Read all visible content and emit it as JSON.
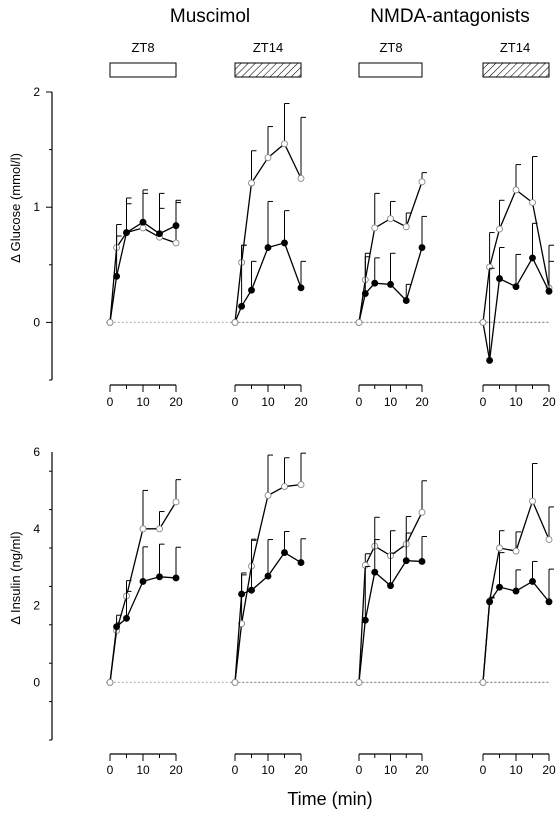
{
  "header": {
    "group_titles": [
      "Muscimol",
      "NMDA-antagonists"
    ],
    "panel_labels": [
      "ZT8",
      "ZT14",
      "ZT8",
      "ZT14"
    ],
    "bar_fill": [
      "open",
      "hatched",
      "open",
      "hatched"
    ]
  },
  "x_axis": {
    "label": "Time (min)",
    "ticks": [
      0,
      10,
      20
    ],
    "tick_labels": [
      "0",
      "10",
      "20"
    ]
  },
  "colors": {
    "line": "#000000",
    "filled_marker": "#000000",
    "open_marker": "#ffffff",
    "zero_line": "#999999"
  },
  "chart_data": [
    {
      "type": "line",
      "row": "glucose",
      "group": "Muscimol",
      "panel": "ZT8",
      "ylabel": "Δ Glucose (mmol/l)",
      "ylim": [
        -0.5,
        2
      ],
      "yticks": [
        0,
        1,
        2
      ],
      "xlim": [
        0,
        20
      ],
      "x": [
        0,
        2,
        5,
        10,
        15,
        20
      ],
      "series": [
        {
          "marker": "open",
          "values": [
            0,
            0.65,
            0.78,
            0.82,
            0.74,
            0.69
          ],
          "err": [
            0,
            0.1,
            0.25,
            0.3,
            0.25,
            0.35
          ]
        },
        {
          "marker": "filled",
          "values": [
            0,
            0.4,
            0.78,
            0.87,
            0.77,
            0.84
          ],
          "err": [
            0,
            0.45,
            0.3,
            0.28,
            0.35,
            0.22
          ]
        }
      ]
    },
    {
      "type": "line",
      "row": "glucose",
      "group": "Muscimol",
      "panel": "ZT14",
      "ylabel": "Δ Glucose (mmol/l)",
      "ylim": [
        -0.5,
        2
      ],
      "yticks": [
        0,
        1,
        2
      ],
      "xlim": [
        0,
        20
      ],
      "x": [
        0,
        2,
        5,
        10,
        15,
        20
      ],
      "series": [
        {
          "marker": "open",
          "values": [
            0,
            0.52,
            1.21,
            1.43,
            1.55,
            1.25
          ],
          "err": [
            0,
            0.15,
            0.28,
            0.27,
            0.35,
            0.53
          ]
        },
        {
          "marker": "filled",
          "values": [
            0,
            0.14,
            0.28,
            0.65,
            0.69,
            0.3
          ],
          "err": [
            0,
            0.53,
            0.25,
            0.4,
            0.28,
            0.23
          ]
        }
      ]
    },
    {
      "type": "line",
      "row": "glucose",
      "group": "NMDA-antagonists",
      "panel": "ZT8",
      "ylabel": "Δ Glucose (mmol/l)",
      "ylim": [
        -0.5,
        2
      ],
      "yticks": [
        0,
        1,
        2
      ],
      "xlim": [
        0,
        20
      ],
      "x": [
        0,
        2,
        5,
        10,
        15,
        20
      ],
      "series": [
        {
          "marker": "open",
          "values": [
            0,
            0.37,
            0.82,
            0.9,
            0.83,
            1.22
          ],
          "err": [
            0,
            0.2,
            0.3,
            0.15,
            0.12,
            0.08
          ]
        },
        {
          "marker": "filled",
          "values": [
            0,
            0.25,
            0.34,
            0.33,
            0.19,
            0.65
          ],
          "err": [
            0,
            0.35,
            0.22,
            0.27,
            0.14,
            0.27
          ]
        }
      ]
    },
    {
      "type": "line",
      "row": "glucose",
      "group": "NMDA-antagonists",
      "panel": "ZT14",
      "ylabel": "Δ Glucose (mmol/l)",
      "ylim": [
        -0.5,
        2
      ],
      "yticks": [
        0,
        1,
        2
      ],
      "xlim": [
        0,
        20
      ],
      "x": [
        0,
        2,
        5,
        10,
        15,
        20
      ],
      "series": [
        {
          "marker": "open",
          "values": [
            0,
            0.48,
            0.81,
            1.15,
            1.04,
            0.3
          ],
          "err": [
            0,
            0.3,
            0.25,
            0.22,
            0.4,
            0.37
          ]
        },
        {
          "marker": "filled",
          "values": [
            0,
            -0.33,
            0.38,
            0.31,
            0.56,
            0.27
          ],
          "err": [
            0,
            0.8,
            0.27,
            0.28,
            0.3,
            0.26
          ]
        }
      ]
    },
    {
      "type": "line",
      "row": "insulin",
      "group": "Muscimol",
      "panel": "ZT8",
      "ylabel": "Δ Insulin (ng/ml)",
      "ylim": [
        -1.5,
        6
      ],
      "yticks": [
        0,
        2,
        4,
        6
      ],
      "xlim": [
        0,
        20
      ],
      "x": [
        0,
        2,
        5,
        10,
        15,
        20
      ],
      "series": [
        {
          "marker": "open",
          "values": [
            0,
            1.35,
            2.25,
            4.0,
            4.0,
            4.7
          ],
          "err": [
            0,
            0.2,
            0.4,
            1.0,
            0.45,
            0.58
          ]
        },
        {
          "marker": "filled",
          "values": [
            0,
            1.45,
            1.67,
            2.63,
            2.75,
            2.72
          ],
          "err": [
            0,
            0.3,
            0.7,
            0.9,
            0.85,
            0.8
          ]
        }
      ]
    },
    {
      "type": "line",
      "row": "insulin",
      "group": "Muscimol",
      "panel": "ZT14",
      "ylabel": "Δ Insulin (ng/ml)",
      "ylim": [
        -1.5,
        6
      ],
      "yticks": [
        0,
        2,
        4,
        6
      ],
      "xlim": [
        0,
        20
      ],
      "x": [
        0,
        2,
        5,
        10,
        15,
        20
      ],
      "series": [
        {
          "marker": "open",
          "values": [
            0,
            1.53,
            3.03,
            4.87,
            5.1,
            5.15
          ],
          "err": [
            0,
            1.27,
            0.7,
            1.05,
            0.75,
            0.82
          ]
        },
        {
          "marker": "filled",
          "values": [
            0,
            2.3,
            2.4,
            2.77,
            3.38,
            3.12
          ],
          "err": [
            0,
            0.55,
            1.3,
            0.95,
            0.55,
            0.62
          ]
        }
      ]
    },
    {
      "type": "line",
      "row": "insulin",
      "group": "NMDA-antagonists",
      "panel": "ZT8",
      "ylabel": "Δ Insulin (ng/ml)",
      "ylim": [
        -1.5,
        6
      ],
      "yticks": [
        0,
        2,
        4,
        6
      ],
      "xlim": [
        0,
        20
      ],
      "x": [
        0,
        2,
        5,
        10,
        15,
        20
      ],
      "series": [
        {
          "marker": "open",
          "values": [
            0,
            3.05,
            3.55,
            3.3,
            3.6,
            4.43
          ],
          "err": [
            0,
            0.3,
            0.75,
            0.65,
            0.72,
            0.82
          ]
        },
        {
          "marker": "filled",
          "values": [
            0,
            1.62,
            2.87,
            2.52,
            3.17,
            3.15
          ],
          "err": [
            0,
            1.4,
            0.85,
            0.85,
            0.72,
            0.65
          ]
        }
      ]
    },
    {
      "type": "line",
      "row": "insulin",
      "group": "NMDA-antagonists",
      "panel": "ZT14",
      "ylabel": "Δ Insulin (ng/ml)",
      "ylim": [
        -1.5,
        6
      ],
      "yticks": [
        0,
        2,
        4,
        6
      ],
      "xlim": [
        0,
        20
      ],
      "x": [
        0,
        2,
        5,
        10,
        15,
        20
      ],
      "series": [
        {
          "marker": "open",
          "values": [
            0,
            2.12,
            3.5,
            3.42,
            4.72,
            3.72
          ],
          "err": [
            0,
            0.1,
            0.45,
            0.5,
            0.98,
            0.85
          ]
        },
        {
          "marker": "filled",
          "values": [
            0,
            2.1,
            2.48,
            2.38,
            2.63,
            2.1
          ],
          "err": [
            0,
            0.1,
            0.9,
            0.55,
            0.52,
            0.85
          ]
        }
      ]
    }
  ]
}
